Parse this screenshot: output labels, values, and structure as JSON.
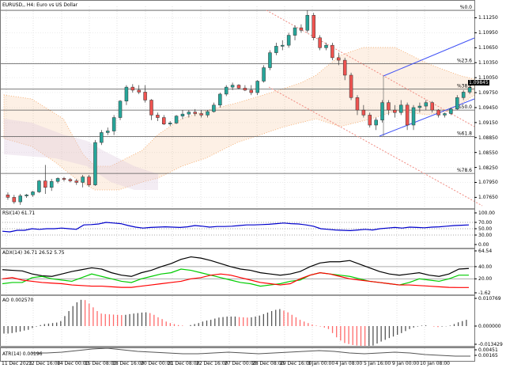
{
  "window": {
    "title": "EURUSD,, H4: Euro vs US Dollar",
    "current_price": "1.09845"
  },
  "colors": {
    "bull": "#26a69a",
    "bear": "#ef5350",
    "grid": "#c8c8c8",
    "fib_line": "#555555",
    "channel_up": "#3f51f5",
    "channel_down": "#f08a80",
    "cloud_orange": "#f4a460",
    "cloud_pink": "#dcc8dc",
    "rsi": "#0000cc",
    "adx": "#000000",
    "plus_di": "#00cc00",
    "minus_di": "#ff0000",
    "ao_up": "#555555",
    "ao_down": "#ff6b6b",
    "atr": "#555555"
  },
  "chart_data": {
    "type": "candlestick",
    "title": "EURUSD,, H4: Euro vs US Dollar",
    "price_axis": {
      "ticks": [
        "1.11250",
        "1.10950",
        "1.10650",
        "1.10350",
        "1.10050",
        "1.09750",
        "1.09450",
        "1.09150",
        "1.08850",
        "1.08550",
        "1.08250",
        "1.07950",
        "1.07650"
      ],
      "range": [
        1.0745,
        1.1148
      ]
    },
    "time_axis": [
      "11 Dec 2023",
      "12 Dec 16:00",
      "14 Dec 00:00",
      "15 Dec 08:00",
      "18 Dec 16:00",
      "20 Dec 00:00",
      "21 Dec 08:00",
      "22 Dec 16:00",
      "27 Dec 00:00",
      "28 Dec 08:00",
      "29 Dec 16:00",
      "3 Jan 00:00",
      "4 Jan 08:00",
      "5 Jan 16:00",
      "9 Jan 00:00",
      "10 Jan 08:00"
    ],
    "fibonacci": [
      {
        "label": "%0.0",
        "price": 1.114
      },
      {
        "label": "%23.6",
        "price": 1.1033
      },
      {
        "label": "%38.2",
        "price": 1.0982
      },
      {
        "label": "%50.0",
        "price": 1.094
      },
      {
        "label": "%61.8",
        "price": 1.0887
      },
      {
        "label": "%78.6",
        "price": 1.0813
      }
    ],
    "candles_ohlc_approx": [
      [
        1.077,
        1.0775,
        1.076,
        1.0765
      ],
      [
        1.0765,
        1.077,
        1.0752,
        1.0756
      ],
      [
        1.0756,
        1.0772,
        1.075,
        1.0768
      ],
      [
        1.0768,
        1.0772,
        1.0764,
        1.077
      ],
      [
        1.077,
        1.0778,
        1.0766,
        1.0776
      ],
      [
        1.0776,
        1.08,
        1.0774,
        1.0798
      ],
      [
        1.0798,
        1.083,
        1.0772,
        1.0785
      ],
      [
        1.0785,
        1.0802,
        1.0778,
        1.0797
      ],
      [
        1.0797,
        1.0805,
        1.0793,
        1.0803
      ],
      [
        1.0803,
        1.0806,
        1.0797,
        1.0801
      ],
      [
        1.0801,
        1.0804,
        1.0795,
        1.0798
      ],
      [
        1.0798,
        1.0802,
        1.079,
        1.0795
      ],
      [
        1.0795,
        1.081,
        1.0785,
        1.0806
      ],
      [
        1.0806,
        1.081,
        1.0786,
        1.079
      ],
      [
        1.079,
        1.088,
        1.0788,
        1.0875
      ],
      [
        1.0875,
        1.09,
        1.087,
        1.0895
      ],
      [
        1.0895,
        1.0905,
        1.089,
        1.0898
      ],
      [
        1.0898,
        1.093,
        1.089,
        1.0925
      ],
      [
        1.0925,
        1.096,
        1.092,
        1.0958
      ],
      [
        1.0958,
        1.099,
        1.095,
        1.0986
      ],
      [
        1.0986,
        1.0992,
        1.0975,
        1.098
      ],
      [
        1.098,
        1.099,
        1.0972,
        1.0976
      ],
      [
        1.0976,
        1.099,
        1.0955,
        1.096
      ],
      [
        1.096,
        1.0962,
        1.092,
        1.093
      ],
      [
        1.093,
        1.0935,
        1.0918,
        1.0925
      ],
      [
        1.0925,
        1.093,
        1.091,
        1.0912
      ],
      [
        1.0912,
        1.0918,
        1.0908,
        1.0914
      ],
      [
        1.0914,
        1.093,
        1.0912,
        1.0928
      ],
      [
        1.0928,
        1.094,
        1.0922,
        1.0932
      ],
      [
        1.0932,
        1.094,
        1.0925,
        1.0936
      ],
      [
        1.0936,
        1.0942,
        1.0928,
        1.0933
      ],
      [
        1.0933,
        1.094,
        1.0925,
        1.093
      ],
      [
        1.093,
        1.094,
        1.0925,
        1.0937
      ],
      [
        1.0937,
        1.0955,
        1.0935,
        1.095
      ],
      [
        1.095,
        1.0975,
        1.0945,
        1.0972
      ],
      [
        1.0972,
        1.099,
        1.0968,
        1.0986
      ],
      [
        1.0986,
        1.0995,
        1.098,
        1.099
      ],
      [
        1.099,
        1.0992,
        1.0982,
        1.0984
      ],
      [
        1.0984,
        1.099,
        1.0978,
        1.098
      ],
      [
        1.098,
        1.099,
        1.097,
        1.0975
      ]
    ],
    "indicators": {
      "rsi": {
        "label": "RSI(14) 61.71",
        "levels": [
          70,
          50,
          30
        ],
        "axis": [
          "100.00",
          "70.00",
          "50.00",
          "30.00",
          "0.00"
        ]
      },
      "adx": {
        "label": "ADX(14) 36.71 26.52 5.75",
        "axis": [
          "64.54",
          "40.00",
          "20.00",
          "-1.62"
        ]
      },
      "ao": {
        "label": "AO 0.002570",
        "axis": [
          "0.010769",
          "0.000000",
          "-0.013429"
        ]
      },
      "atr": {
        "label": "ATR(14) 0.00196",
        "axis": [
          "0.00451",
          "0.00165"
        ]
      }
    }
  }
}
